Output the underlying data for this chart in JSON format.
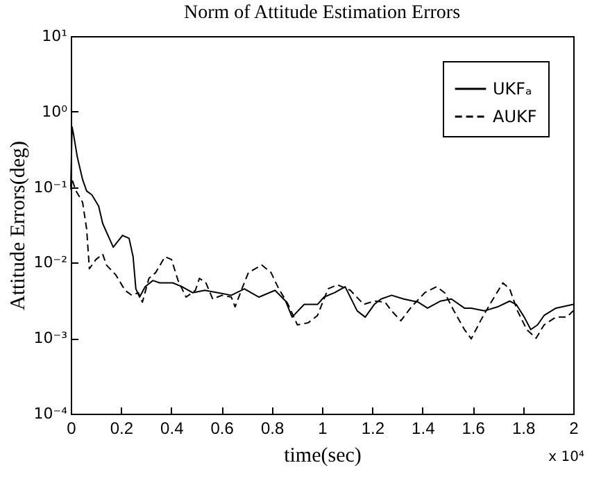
{
  "chart_data": {
    "type": "line",
    "title": "Norm of Attitude Estimation Errors",
    "xlabel": "time(sec)",
    "ylabel": "Attitude Errors(deg)",
    "annotations": [
      "x 10⁴"
    ],
    "log": "y",
    "grid": false,
    "legend": "top right",
    "marker": "none",
    "xlim": [
      0,
      2
    ],
    "xticks": [
      0,
      0.2,
      0.4,
      0.6,
      0.8,
      1,
      1.2,
      1.4,
      1.6,
      1.8,
      2
    ],
    "ylim": [
      0.0001,
      10
    ],
    "yticks": [
      {
        "value": 0.0001,
        "label": "10⁻⁴"
      },
      {
        "value": 0.001,
        "label": "10⁻³"
      },
      {
        "value": 0.01,
        "label": "10⁻²"
      },
      {
        "value": 0.1,
        "label": "10⁻¹"
      },
      {
        "value": 1,
        "label": "10⁰"
      },
      {
        "value": 10,
        "label": "10¹"
      }
    ],
    "series": [
      {
        "name": "UKFₐ",
        "color": "#000000",
        "line_style": "solid",
        "x": [
          0,
          0.005,
          0.011,
          0.026,
          0.047,
          0.063,
          0.084,
          0.111,
          0.127,
          0.169,
          0.206,
          0.232,
          0.248,
          0.259,
          0.274,
          0.296,
          0.327,
          0.354,
          0.406,
          0.443,
          0.485,
          0.533,
          0.586,
          0.639,
          0.691,
          0.749,
          0.813,
          0.855,
          0.881,
          0.929,
          0.982,
          1.008,
          1.05,
          1.092,
          1.14,
          1.172,
          1.208,
          1.235,
          1.277,
          1.325,
          1.383,
          1.42,
          1.472,
          1.515,
          1.567,
          1.594,
          1.646,
          1.699,
          1.747,
          1.773,
          1.805,
          1.831,
          1.858,
          1.884,
          1.931,
          2.0
        ],
        "values": [
          0.1,
          0.63,
          0.5,
          0.25,
          0.126,
          0.089,
          0.079,
          0.056,
          0.033,
          0.016,
          0.023,
          0.021,
          0.012,
          0.0045,
          0.0035,
          0.0048,
          0.0058,
          0.0054,
          0.0054,
          0.0048,
          0.004,
          0.0043,
          0.004,
          0.0037,
          0.0045,
          0.0035,
          0.0043,
          0.0031,
          0.0019,
          0.0028,
          0.0028,
          0.0035,
          0.004,
          0.0048,
          0.0023,
          0.0019,
          0.0028,
          0.0033,
          0.0037,
          0.0033,
          0.003,
          0.0025,
          0.0031,
          0.0033,
          0.0025,
          0.0025,
          0.0023,
          0.0026,
          0.0031,
          0.0028,
          0.0019,
          0.0013,
          0.0015,
          0.002,
          0.0025,
          0.0028
        ]
      },
      {
        "name": "AUKF",
        "color": "#000000",
        "line_style": "dashed",
        "x": [
          0,
          0.005,
          0.021,
          0.047,
          0.063,
          0.074,
          0.1,
          0.127,
          0.142,
          0.179,
          0.216,
          0.243,
          0.269,
          0.285,
          0.311,
          0.338,
          0.375,
          0.401,
          0.427,
          0.459,
          0.496,
          0.512,
          0.538,
          0.565,
          0.602,
          0.639,
          0.654,
          0.681,
          0.707,
          0.76,
          0.797,
          0.828,
          0.865,
          0.902,
          0.945,
          0.982,
          1.024,
          1.061,
          1.113,
          1.166,
          1.208,
          1.251,
          1.277,
          1.314,
          1.356,
          1.409,
          1.456,
          1.488,
          1.525,
          1.567,
          1.594,
          1.631,
          1.668,
          1.72,
          1.747,
          1.778,
          1.815,
          1.852,
          1.884,
          1.931,
          1.974,
          2.0
        ],
        "values": [
          0.093,
          0.126,
          0.089,
          0.063,
          0.028,
          0.0083,
          0.011,
          0.013,
          0.0093,
          0.0069,
          0.0043,
          0.0037,
          0.004,
          0.003,
          0.0062,
          0.0074,
          0.012,
          0.011,
          0.0058,
          0.0035,
          0.0043,
          0.0062,
          0.0054,
          0.0033,
          0.0037,
          0.0035,
          0.0026,
          0.0045,
          0.0074,
          0.0093,
          0.0074,
          0.0045,
          0.0028,
          0.0015,
          0.0016,
          0.002,
          0.0045,
          0.0051,
          0.0043,
          0.0028,
          0.0031,
          0.003,
          0.0023,
          0.0017,
          0.0026,
          0.004,
          0.0048,
          0.004,
          0.0023,
          0.0013,
          0.00098,
          0.0017,
          0.0028,
          0.0054,
          0.0045,
          0.0023,
          0.0013,
          0.001,
          0.0015,
          0.0019,
          0.0019,
          0.0023
        ]
      }
    ]
  }
}
